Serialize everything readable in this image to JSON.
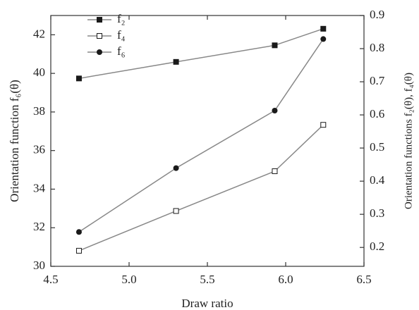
{
  "chart_data": {
    "type": "line",
    "x_label": "Draw ratio",
    "y_label": "Orientation function f₆(θ)",
    "y2_label": "Orientation functions f₂(θ), f₄(θ)",
    "x": [
      4.68,
      5.3,
      5.93,
      6.24
    ],
    "series": [
      {
        "name": "f₂",
        "color": "#1a1a1a",
        "marker": "square",
        "axis": "y2",
        "values": [
          0.71,
          0.76,
          0.81,
          0.86
        ]
      },
      {
        "name": "f₄",
        "color": "#1a1a1a",
        "marker": "open-square",
        "axis": "y2",
        "values": [
          0.19,
          0.31,
          0.43,
          0.57
        ]
      },
      {
        "name": "f₆",
        "color": "#1a1a1a",
        "marker": "circle",
        "axis": "y",
        "values": [
          31.78,
          35.09,
          38.07,
          41.78
        ]
      }
    ],
    "xlim": [
      4.5,
      6.5
    ],
    "xticks": [
      4.5,
      {
        "value": 5,
        "label": "5.0"
      },
      5.5,
      {
        "value": 6,
        "label": "6.0"
      },
      6.5
    ],
    "ylim": [
      30,
      43
    ],
    "yticks": [
      30,
      32,
      34,
      36,
      38,
      40,
      42
    ],
    "y2lim": [
      0.143,
      0.9
    ],
    "y2ticks": [
      0.2,
      0.3,
      0.4,
      0.5,
      0.6,
      0.7,
      0.8,
      0.9
    ],
    "legend": "upper-left"
  }
}
